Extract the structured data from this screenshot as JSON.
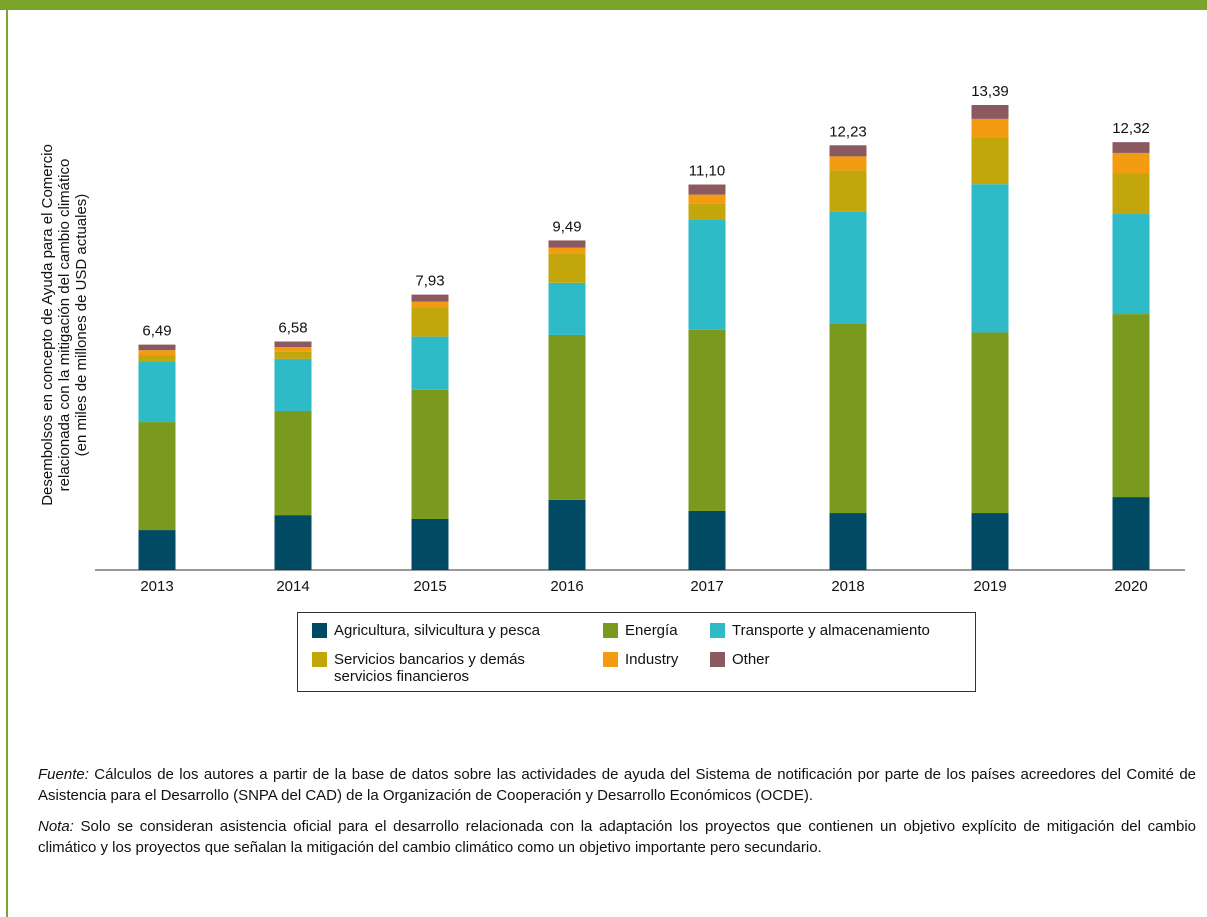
{
  "chart_data": {
    "type": "stacked_bar",
    "y_label": "Desembolsos en concepto de Ayuda para el Comercio relacionada con la mitigación del cambio climático (en miles de millones de USD actuales)",
    "y_label_lines": [
      "Desembolsos en concepto de Ayuda para el Comercio",
      "relacionada con la mitigación del cambio climático",
      "(en miles de millones de USD actuales)"
    ],
    "categories": [
      "2013",
      "2014",
      "2015",
      "2016",
      "2017",
      "2018",
      "2019",
      "2020"
    ],
    "series": [
      {
        "name": "Agricultura, silvicultura y pesca",
        "color": "#004a63",
        "values": [
          1.15,
          1.58,
          1.47,
          2.02,
          1.7,
          1.64,
          1.64,
          2.1
        ]
      },
      {
        "name": "Energía",
        "color": "#7a9a1f",
        "values": [
          3.11,
          3.0,
          3.72,
          4.75,
          5.22,
          5.46,
          5.2,
          5.27
        ]
      },
      {
        "name": "Transporte y almacenamiento",
        "color": "#2ebac6",
        "values": [
          1.73,
          1.5,
          1.53,
          1.5,
          3.17,
          3.23,
          4.27,
          2.88
        ]
      },
      {
        "name": "Servicios bancarios y demás servicios financieros",
        "color": "#c3a50c",
        "values": [
          0.2,
          0.2,
          0.84,
          0.84,
          0.46,
          1.18,
          1.33,
          1.18
        ]
      },
      {
        "name": "Industry",
        "color": "#f39c12",
        "values": [
          0.14,
          0.14,
          0.17,
          0.17,
          0.26,
          0.4,
          0.55,
          0.58
        ]
      },
      {
        "name": "Other",
        "color": "#8b5a5e",
        "values": [
          0.16,
          0.16,
          0.2,
          0.21,
          0.29,
          0.32,
          0.4,
          0.31
        ]
      }
    ],
    "totals": {
      "values": [
        6.49,
        6.58,
        7.93,
        9.49,
        11.1,
        12.23,
        13.39,
        12.32
      ],
      "value_labels": [
        "6,49",
        "6,58",
        "7,93",
        "9,49",
        "11,10",
        "12,23",
        "13,39",
        "12,32"
      ]
    }
  },
  "notes": [
    {
      "label": "Fuente:",
      "text": "Cálculos de los autores a partir de la base de datos sobre las actividades de ayuda del Sistema de notificación por parte de los países acreedores del Comité de Asistencia para el Desarrollo (SNPA del CAD) de la Organización de Cooperación y Desarrollo Económicos (OCDE)."
    },
    {
      "label": "Nota:",
      "text": "Solo se consideran asistencia oficial para el desarrollo relacionada con la adaptación los proyectos que contienen un objetivo explícito de mitigación del cambio climático y los proyectos que señalan la mitigación del cambio climático como un objetivo importante pero secundario."
    }
  ]
}
